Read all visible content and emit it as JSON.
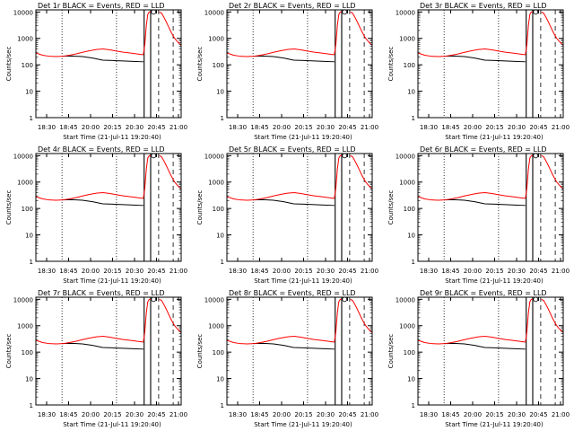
{
  "chart_data": {
    "type": "line",
    "grid": false,
    "y_scale": "log",
    "ylim": [
      1,
      12000
    ],
    "ylabel": "Counts/sec",
    "y_ticks": [
      "1",
      "10",
      "100",
      "1000",
      "10000"
    ],
    "x_ticks": [
      "18:30",
      "18:45",
      "20:00",
      "20:15",
      "20:30",
      "20:45",
      "21:00"
    ],
    "xlabel": "Start Time (21-Jul-11 19:20:40)",
    "series_colors": {
      "events": "#000000",
      "lld": "#ff0000"
    },
    "panels": [
      {
        "title": "Det 1r BLACK = Events, RED = LLD"
      },
      {
        "title": "Det 2r BLACK = Events, RED = LLD"
      },
      {
        "title": "Det 3r BLACK = Events, RED = LLD"
      },
      {
        "title": "Det 4r BLACK = Events, RED = LLD"
      },
      {
        "title": "Det 5r BLACK = Events, RED = LLD"
      },
      {
        "title": "Det 6r BLACK = Events, RED = LLD"
      },
      {
        "title": "Det 7r BLACK = Events, RED = LLD"
      },
      {
        "title": "Det 8r BLACK = Events, RED = LLD"
      },
      {
        "title": "Det 9r BLACK = Events, RED = LLD"
      }
    ],
    "events_series": {
      "x": [
        0,
        1,
        2,
        3,
        4,
        5,
        6,
        7,
        8
      ],
      "values": [
        210,
        215,
        205,
        180,
        150,
        145,
        140,
        135,
        130
      ]
    },
    "lld_series": {
      "x": [
        0,
        2,
        4,
        6,
        8,
        10,
        12,
        14,
        16,
        18,
        20,
        22,
        24,
        26,
        28,
        30,
        32
      ],
      "values": [
        280,
        230,
        210,
        205,
        210,
        230,
        260,
        300,
        340,
        380,
        400,
        370,
        330,
        300,
        280,
        260,
        240
      ]
    },
    "lld_rise": {
      "x": [
        0,
        1,
        2,
        3,
        4,
        5
      ],
      "values": [
        250,
        600,
        3000,
        8000,
        10000,
        10000
      ]
    },
    "lld_decay": {
      "x": [
        0,
        1,
        2,
        3,
        4,
        5,
        6,
        7,
        8,
        9,
        10
      ],
      "values": [
        10000,
        9000,
        6500,
        4500,
        3000,
        2000,
        1400,
        1000,
        800,
        650,
        550
      ]
    }
  }
}
